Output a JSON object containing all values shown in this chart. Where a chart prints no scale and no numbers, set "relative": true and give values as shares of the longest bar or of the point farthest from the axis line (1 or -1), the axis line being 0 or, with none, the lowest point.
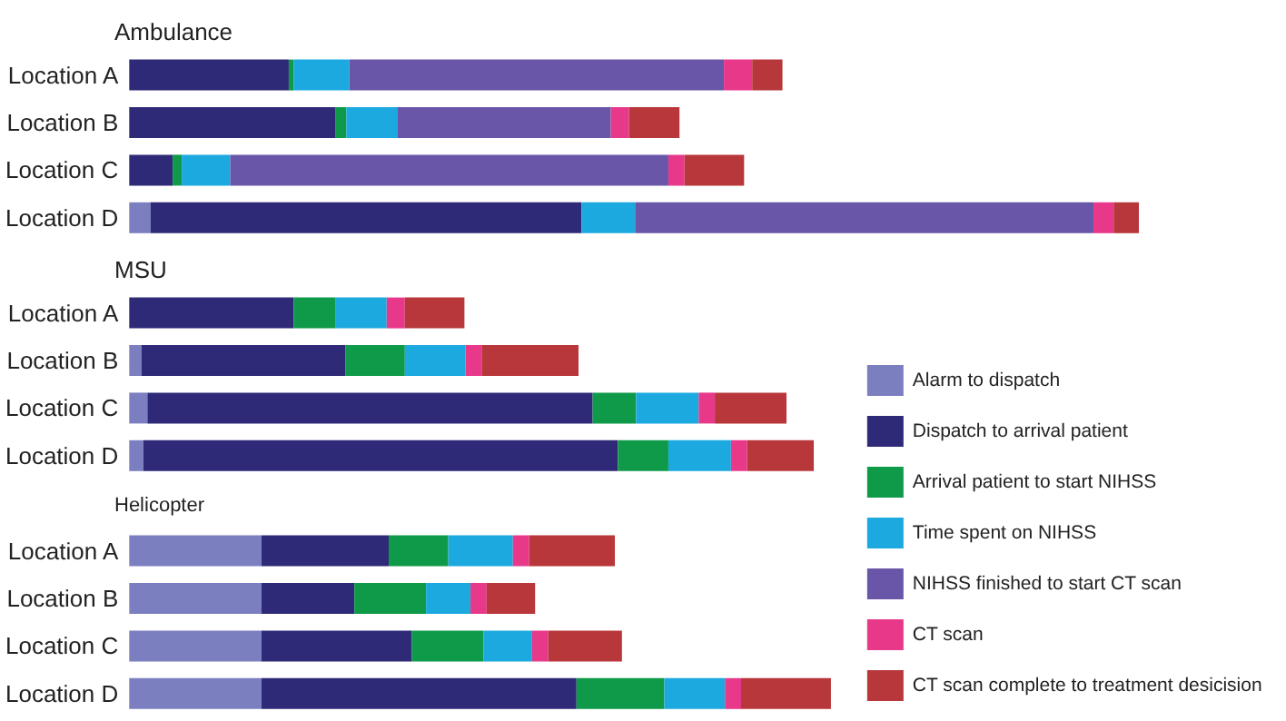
{
  "chart_data": {
    "type": "bar",
    "orientation": "horizontal",
    "stacked": true,
    "relative": true,
    "legend": "bottom right",
    "categories": [
      null,
      "Location A",
      "Location B",
      "Location C",
      "Location D",
      null,
      "Location A",
      "Location B",
      "Location C",
      "Location D",
      null,
      "Location A",
      "Location B",
      "Location C",
      "Location D"
    ],
    "annotations": [
      "Ambulance",
      "MSU",
      "Helicopter"
    ],
    "series": [
      {
        "name": "Alarm to dispatch",
        "color": "#7b7fc0",
        "values": [
          null,
          0,
          0,
          0,
          0.021,
          null,
          0,
          0.012,
          0.018,
          0.014,
          null,
          0.131,
          0.131,
          0.131,
          0.131
        ]
      },
      {
        "name": "Dispatch to arrival patient",
        "color": "#2e2a78",
        "values": [
          null,
          0.158,
          0.204,
          0.043,
          0.427,
          null,
          0.163,
          0.202,
          0.441,
          0.47,
          null,
          0.126,
          0.092,
          0.149,
          0.312
        ]
      },
      {
        "name": "Arrival patient to start NIHSS",
        "color": "#0f9a4a",
        "values": [
          null,
          0.005,
          0.011,
          0.009,
          0,
          null,
          0.041,
          0.059,
          0.043,
          0.05,
          null,
          0.059,
          0.071,
          0.071,
          0.087
        ]
      },
      {
        "name": "Time spent on NIHSS",
        "color": "#1ba9df",
        "values": [
          null,
          0.055,
          0.051,
          0.048,
          0.053,
          null,
          0.051,
          0.06,
          0.062,
          0.062,
          null,
          0.064,
          0.044,
          0.048,
          0.06
        ]
      },
      {
        "name": "NIHSS finished to start CT scan",
        "color": "#6a56a8",
        "values": [
          null,
          0.371,
          0.211,
          0.434,
          0.454,
          null,
          0,
          0,
          0,
          0,
          null,
          0,
          0,
          0,
          0
        ]
      },
      {
        "name": "CT scan",
        "color": "#e8388a",
        "values": [
          null,
          0.028,
          0.018,
          0.016,
          0.02,
          null,
          0.018,
          0.016,
          0.016,
          0.016,
          null,
          0.016,
          0.016,
          0.016,
          0.016
        ]
      },
      {
        "name": "CT scan complete to treatment desicision",
        "color": "#b8373a",
        "values": [
          null,
          0.03,
          0.05,
          0.059,
          0.025,
          null,
          0.059,
          0.096,
          0.071,
          0.066,
          null,
          0.085,
          0.048,
          0.073,
          0.089
        ]
      }
    ]
  }
}
